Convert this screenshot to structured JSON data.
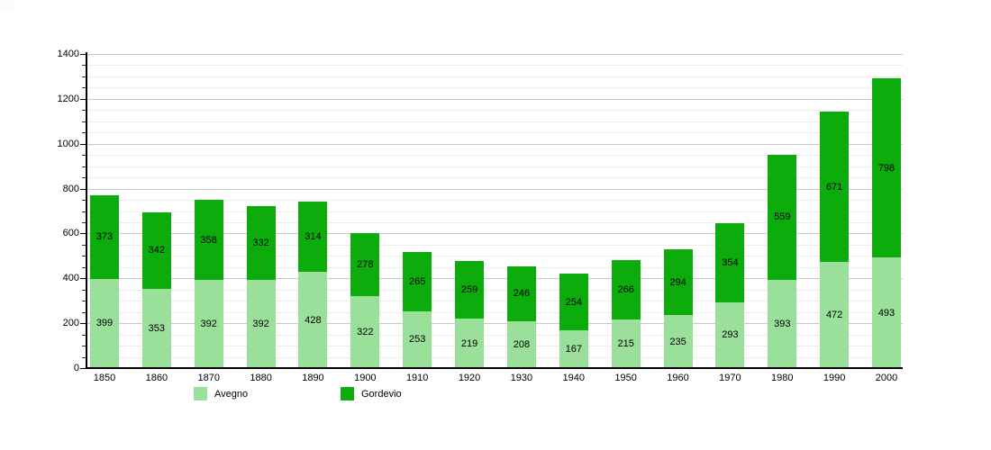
{
  "chart_data": {
    "type": "bar",
    "stacked": true,
    "title": "",
    "xlabel": "",
    "ylabel": "",
    "categories": [
      "1850",
      "1860",
      "1870",
      "1880",
      "1890",
      "1900",
      "1910",
      "1920",
      "1930",
      "1940",
      "1950",
      "1960",
      "1970",
      "1980",
      "1990",
      "2000"
    ],
    "series": [
      {
        "name": "Avegno",
        "color": "#9ADF9A",
        "values": [
          399,
          353,
          392,
          392,
          428,
          322,
          253,
          219,
          208,
          167,
          215,
          235,
          293,
          393,
          472,
          493
        ]
      },
      {
        "name": "Gordevio",
        "color": "#0CAC0C",
        "values": [
          373,
          342,
          358,
          332,
          314,
          278,
          265,
          259,
          246,
          254,
          266,
          294,
          354,
          559,
          671,
          798
        ]
      }
    ],
    "ylim": [
      0,
      1400
    ],
    "y_ticks": [
      0,
      200,
      400,
      600,
      800,
      1000,
      1200,
      1400
    ],
    "y_minor_step": 50,
    "grid": true,
    "legend_position": "bottom",
    "colors": {
      "grid_major": "#c8c8c8",
      "grid_minor": "#ececec",
      "axis": "#000000",
      "label_text": "#000000"
    }
  }
}
